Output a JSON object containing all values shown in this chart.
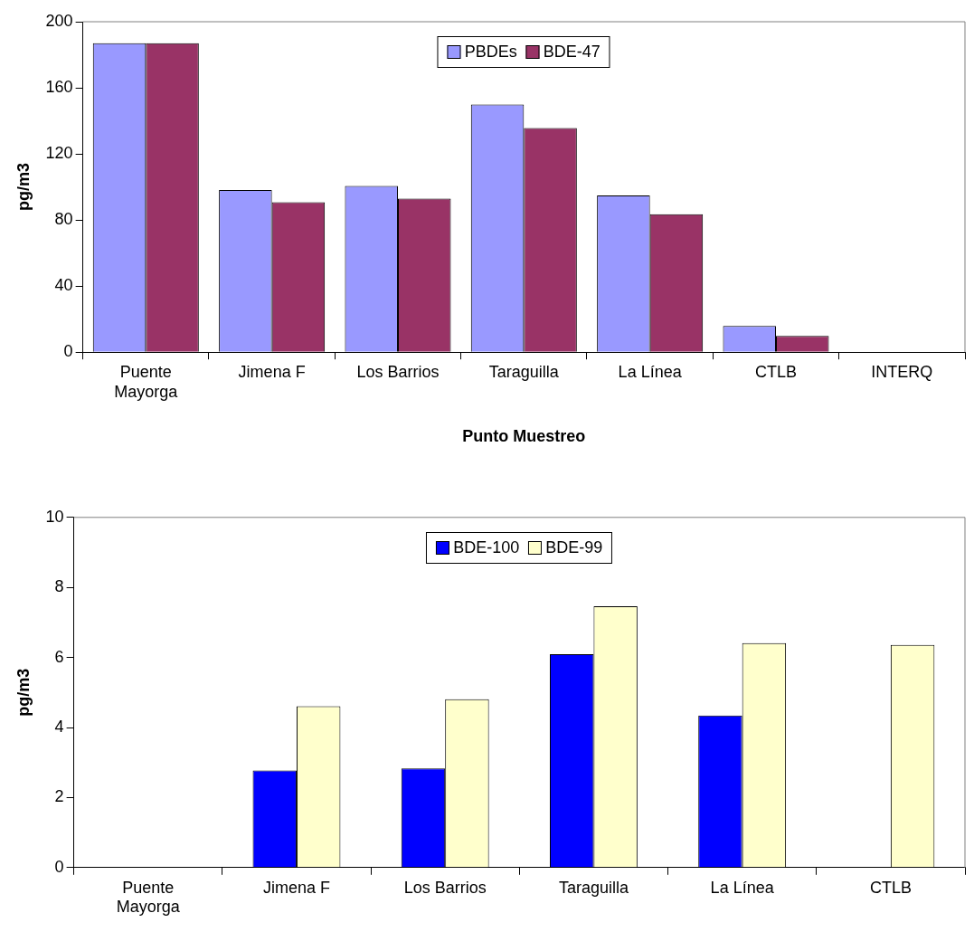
{
  "chart_data": [
    {
      "type": "bar",
      "xlabel": "Punto Muestreo",
      "ylabel": "pg/m3",
      "categories": [
        "Puente Mayorga",
        "Jimena F",
        "Los Barrios",
        "Taraguilla",
        "La Línea",
        "CTLB",
        "INTERQ"
      ],
      "ylim": [
        0,
        200
      ],
      "yticks": [
        0,
        40,
        80,
        120,
        160,
        200
      ],
      "legend": "top",
      "grid": false,
      "series": [
        {
          "name": "PBDEs",
          "color": "#9999ff",
          "values": [
            187,
            98.2,
            100.6,
            149.9,
            94.9,
            15.9,
            null
          ]
        },
        {
          "name": "BDE-47",
          "color": "#993366",
          "values": [
            187,
            90.8,
            92.9,
            135.6,
            83.5,
            9.8,
            null
          ]
        }
      ]
    },
    {
      "type": "bar",
      "ylabel": "pg/m3",
      "categories": [
        "Puente Mayorga",
        "Jimena F",
        "Los Barrios",
        "Taraguilla",
        "La Línea",
        "CTLB"
      ],
      "ylim": [
        0,
        10
      ],
      "yticks": [
        0,
        2,
        4,
        6,
        8,
        10
      ],
      "legend": "top",
      "grid": false,
      "series": [
        {
          "name": "BDE-100",
          "color": "#0000ff",
          "values": [
            null,
            2.77,
            2.83,
            6.09,
            4.34,
            null
          ]
        },
        {
          "name": "BDE-99",
          "color": "#ffffcc",
          "values": [
            null,
            4.61,
            4.81,
            7.46,
            6.41,
            6.36
          ]
        }
      ]
    }
  ]
}
